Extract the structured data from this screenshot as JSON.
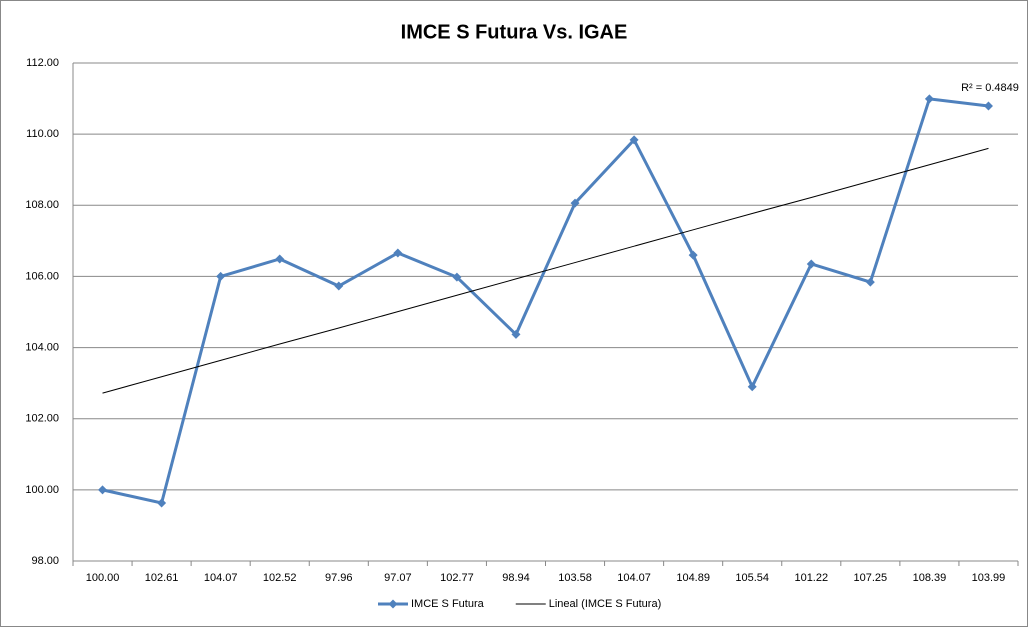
{
  "chart_data": {
    "type": "line",
    "title": "IMCE S Futura Vs. IGAE",
    "categories": [
      "100.00",
      "102.61",
      "104.07",
      "102.52",
      "97.96",
      "97.07",
      "102.77",
      "98.94",
      "103.58",
      "104.07",
      "104.89",
      "105.54",
      "101.22",
      "107.25",
      "108.39",
      "103.99"
    ],
    "series": [
      {
        "name": "IMCE S Futura",
        "color": "#4f81bd",
        "marker": "diamond",
        "values": [
          100.0,
          99.63,
          106.0,
          106.49,
          105.73,
          106.66,
          105.98,
          104.37,
          108.06,
          109.84,
          106.6,
          102.9,
          106.35,
          105.84,
          110.99,
          110.79
        ]
      },
      {
        "name": "Lineal (IMCE S Futura)",
        "color": "#000000",
        "marker": "none",
        "values": [
          102.72,
          103.18,
          103.64,
          104.1,
          104.55,
          105.01,
          105.47,
          105.93,
          106.39,
          106.85,
          107.31,
          107.77,
          108.22,
          108.68,
          109.14,
          109.6
        ]
      }
    ],
    "annotation": "R² = 0.4849",
    "ylim": [
      98,
      112
    ],
    "yticks": [
      {
        "value": 98,
        "label": "98.00"
      },
      {
        "value": 100,
        "label": "100.00"
      },
      {
        "value": 102,
        "label": "102.00"
      },
      {
        "value": 104,
        "label": "104.00"
      },
      {
        "value": 106,
        "label": "106.00"
      },
      {
        "value": 108,
        "label": "108.00"
      },
      {
        "value": 110,
        "label": "110.00"
      },
      {
        "value": 112,
        "label": "112.00"
      }
    ],
    "grid": true,
    "legend": "bottom"
  }
}
